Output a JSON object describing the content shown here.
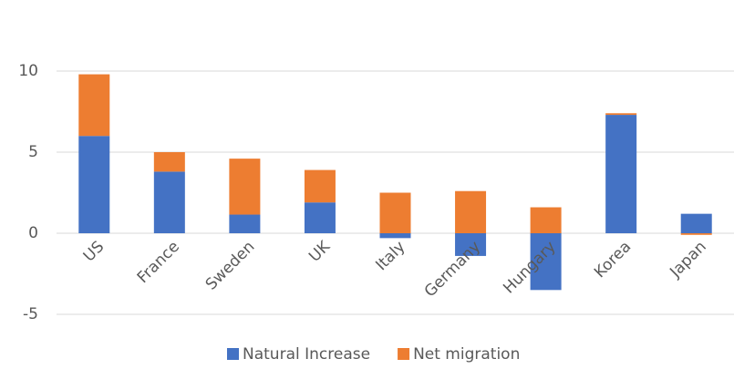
{
  "chart_data": {
    "type": "stacked_bar",
    "categories": [
      "US",
      "France",
      "Sweden",
      "UK",
      "Italy",
      "Germany",
      "Hungary",
      "Korea",
      "Japan"
    ],
    "series": [
      {
        "name": "Natural Increase",
        "color": "#4472c4",
        "values": [
          6.0,
          3.8,
          1.15,
          1.9,
          -0.3,
          -1.4,
          -3.5,
          7.3,
          1.2
        ]
      },
      {
        "name": "Net migration",
        "color": "#ed7d31",
        "values": [
          3.8,
          1.2,
          3.45,
          2.0,
          2.5,
          2.6,
          1.6,
          0.1,
          -0.1
        ]
      }
    ],
    "ylim": [
      -5,
      10
    ],
    "yticks": [
      -5,
      0,
      5,
      10
    ],
    "grid": true,
    "legend": "bottom"
  }
}
